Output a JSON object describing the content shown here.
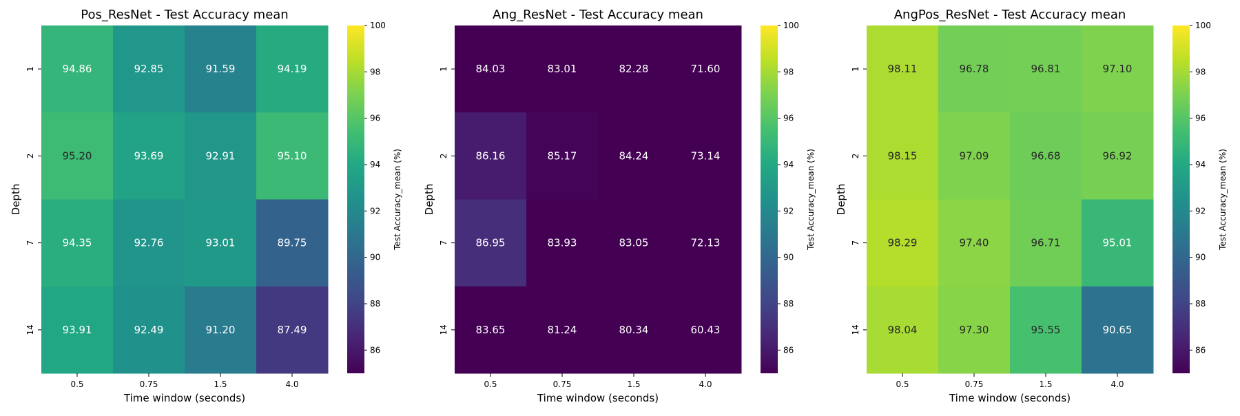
{
  "chart_data": [
    {
      "type": "heatmap",
      "title": "Pos_ResNet - Test Accuracy mean",
      "xlabel": "Time window (seconds)",
      "ylabel": "Depth",
      "x_categories": [
        "0.5",
        "0.75",
        "1.5",
        "4.0"
      ],
      "y_categories": [
        "1",
        "2",
        "7",
        "14"
      ],
      "values": [
        [
          94.86,
          92.85,
          91.59,
          94.19
        ],
        [
          95.2,
          93.69,
          92.91,
          95.1
        ],
        [
          94.35,
          92.76,
          93.01,
          89.75
        ],
        [
          93.91,
          92.49,
          91.2,
          87.49
        ]
      ],
      "cell_labels": [
        [
          "94.86",
          "92.85",
          "91.59",
          "94.19"
        ],
        [
          "95.20",
          "93.69",
          "92.91",
          "95.10"
        ],
        [
          "94.35",
          "92.76",
          "93.01",
          "89.75"
        ],
        [
          "93.91",
          "92.49",
          "91.20",
          "87.49"
        ]
      ],
      "colorbar": {
        "label": "Test Accuracy_mean (%)",
        "vmin": 85,
        "vmax": 100,
        "ticks": [
          "86",
          "88",
          "90",
          "92",
          "94",
          "96",
          "98",
          "100"
        ],
        "colormap": "viridis"
      }
    },
    {
      "type": "heatmap",
      "title": "Ang_ResNet - Test Accuracy mean",
      "xlabel": "Time window (seconds)",
      "ylabel": "Depth",
      "x_categories": [
        "0.5",
        "0.75",
        "1.5",
        "4.0"
      ],
      "y_categories": [
        "1",
        "2",
        "7",
        "14"
      ],
      "values": [
        [
          84.03,
          83.01,
          82.28,
          71.6
        ],
        [
          86.16,
          85.17,
          84.24,
          73.14
        ],
        [
          86.95,
          83.93,
          83.05,
          72.13
        ],
        [
          83.65,
          81.24,
          80.34,
          60.43
        ]
      ],
      "cell_labels": [
        [
          "84.03",
          "83.01",
          "82.28",
          "71.60"
        ],
        [
          "86.16",
          "85.17",
          "84.24",
          "73.14"
        ],
        [
          "86.95",
          "83.93",
          "83.05",
          "72.13"
        ],
        [
          "83.65",
          "81.24",
          "80.34",
          "60.43"
        ]
      ],
      "colorbar": {
        "label": "Test Accuracy_mean (%)",
        "vmin": 85,
        "vmax": 100,
        "ticks": [
          "86",
          "88",
          "90",
          "92",
          "94",
          "96",
          "98",
          "100"
        ],
        "colormap": "viridis"
      }
    },
    {
      "type": "heatmap",
      "title": "AngPos_ResNet - Test Accuracy mean",
      "xlabel": "Time window (seconds)",
      "ylabel": "Depth",
      "x_categories": [
        "0.5",
        "0.75",
        "1.5",
        "4.0"
      ],
      "y_categories": [
        "1",
        "2",
        "7",
        "14"
      ],
      "values": [
        [
          98.11,
          96.78,
          96.81,
          97.1
        ],
        [
          98.15,
          97.09,
          96.68,
          96.92
        ],
        [
          98.29,
          97.4,
          96.71,
          95.01
        ],
        [
          98.04,
          97.3,
          95.55,
          90.65
        ]
      ],
      "cell_labels": [
        [
          "98.11",
          "96.78",
          "96.81",
          "97.10"
        ],
        [
          "98.15",
          "97.09",
          "96.68",
          "96.92"
        ],
        [
          "98.29",
          "97.40",
          "96.71",
          "95.01"
        ],
        [
          "98.04",
          "97.30",
          "95.55",
          "90.65"
        ]
      ],
      "colorbar": {
        "label": "Test Accuracy_mean (%)",
        "vmin": 85,
        "vmax": 100,
        "ticks": [
          "86",
          "88",
          "90",
          "92",
          "94",
          "96",
          "98",
          "100"
        ],
        "colormap": "viridis"
      }
    }
  ]
}
